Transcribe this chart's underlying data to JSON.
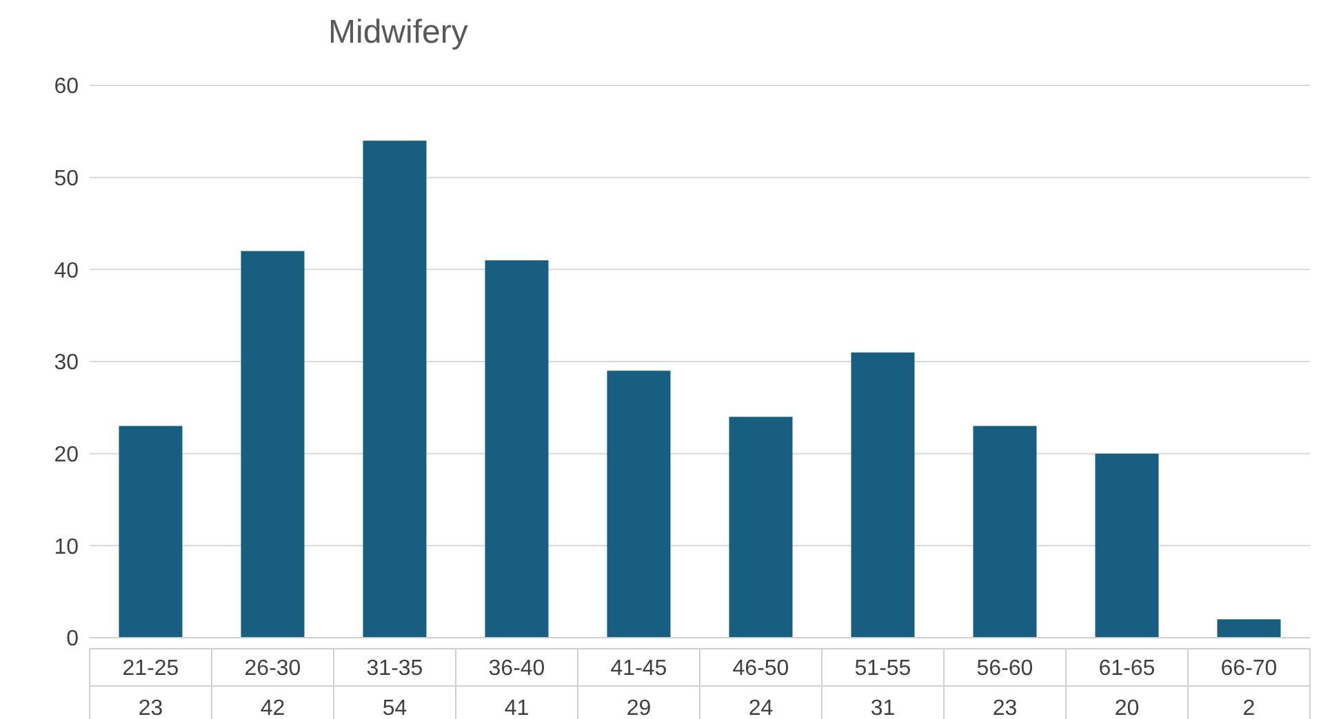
{
  "chart_data": {
    "type": "bar",
    "title": "Midwifery",
    "categories": [
      "21-25",
      "26-30",
      "31-35",
      "36-40",
      "41-45",
      "46-50",
      "51-55",
      "56-60",
      "61-65",
      "66-70"
    ],
    "values": [
      23,
      42,
      54,
      41,
      29,
      24,
      31,
      23,
      20,
      2
    ],
    "color": "#175e80",
    "ylim": [
      0,
      60
    ],
    "yticks": [
      0,
      10,
      20,
      30,
      40,
      50,
      60
    ],
    "grid": "y",
    "data_labels": true
  }
}
